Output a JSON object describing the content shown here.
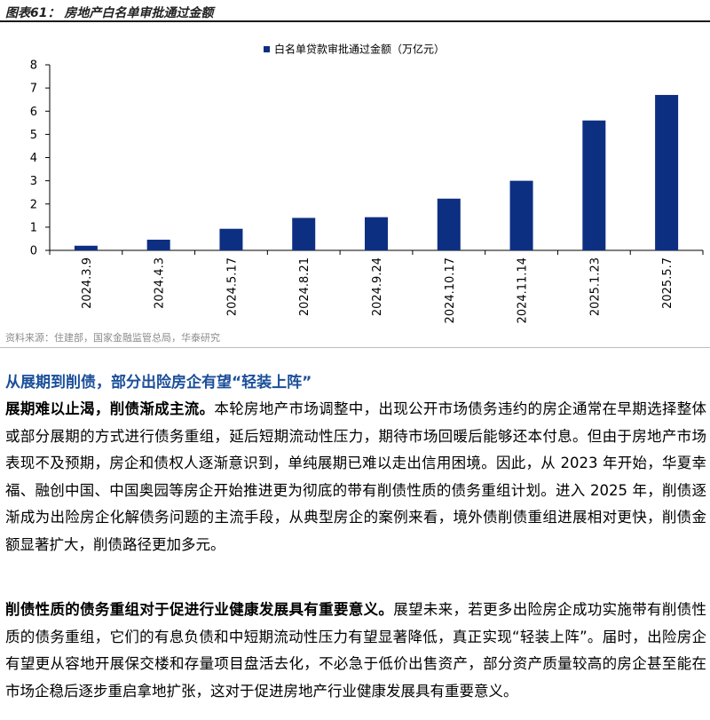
{
  "figure": {
    "title": "图表61：  房地产白名单审批通过金额",
    "source": "资料来源：住建部，国家金融监管总局，华泰研究"
  },
  "chart_data": {
    "type": "bar",
    "categories": [
      "2024.3.9",
      "2024.4.3",
      "2024.5.17",
      "2024.8.21",
      "2024.9.24",
      "2024.10.17",
      "2024.11.14",
      "2025.1.23",
      "2025.5.7"
    ],
    "series": [
      {
        "name": "白名单贷款审批通过金额（万亿元）",
        "values": [
          0.2,
          0.46,
          0.93,
          1.4,
          1.43,
          2.23,
          3.0,
          5.6,
          6.7
        ]
      }
    ],
    "yticks": [
      "0",
      "1",
      "2",
      "3",
      "4",
      "5",
      "6",
      "7",
      "8"
    ],
    "ylim": [
      0,
      8
    ],
    "legend_position": "top-center",
    "bar_color": "#0d2f82"
  },
  "section": {
    "heading": "从展期到削债，部分出险房企有望“轻装上阵”"
  },
  "paragraphs": [
    {
      "lead": "展期难以止渴，削债渐成主流。",
      "body": "本轮房地产市场调整中，出现公开市场债务违约的房企通常在早期选择整体或部分展期的方式进行债务重组，延后短期流动性压力，期待市场回暖后能够还本付息。但由于房地产市场表现不及预期，房企和债权人逐渐意识到，单纯展期已难以走出信用困境。因此，从 2023 年开始，华夏幸福、融创中国、中国奥园等房企开始推进更为彻底的带有削债性质的债务重组计划。进入 2025 年，削债逐渐成为出险房企化解债务问题的主流手段，从典型房企的案例来看，境外债削债重组进展相对更快，削债金额显著扩大，削债路径更加多元。"
    },
    {
      "lead": "削债性质的债务重组对于促进行业健康发展具有重要意义。",
      "body": "展望未来，若更多出险房企成功实施带有削债性质的债务重组，它们的有息负债和中短期流动性压力有望显著降低，真正实现“轻装上阵”。届时，出险房企有望更从容地开展保交楼和存量项目盘活去化，不必急于低价出售资产，部分资产质量较高的房企甚至能在市场企稳后逐步重启拿地扩张，这对于促进房地产行业健康发展具有重要意义。"
    }
  ]
}
